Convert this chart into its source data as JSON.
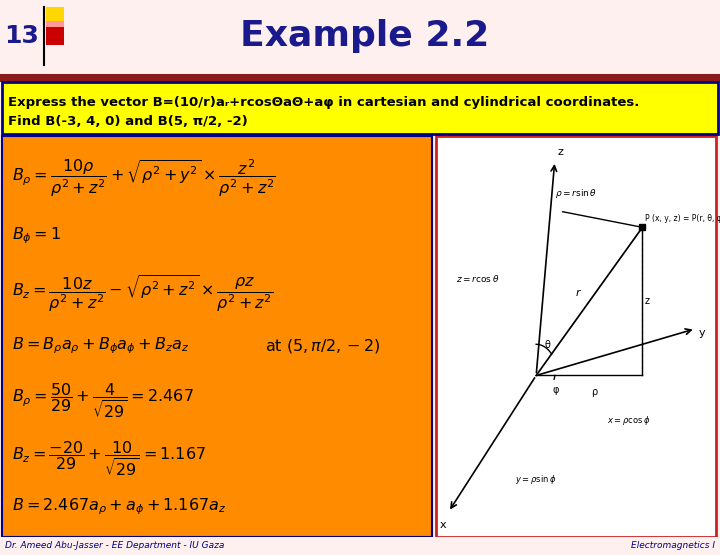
{
  "bg_color": "#FFF0F0",
  "title_number": "13",
  "title_text": "Example 2.2",
  "title_color": "#1a1a8c",
  "accent_bar_color": "#FFD700",
  "header_stripe_color": "#8B1a1a",
  "problem_box_bg": "#FFFF00",
  "problem_box_border": "#00008B",
  "problem_line1": "Express the vector B=(10/r)aᵣ+rcosΘaΘ+aφ in cartesian and cylindrical coordinates.",
  "problem_line2": "Find B(-3, 4, 0) and B(5, π/2, -2)",
  "math_bg": "#FF8C00",
  "math_border": "#00008B",
  "diagram_bg": "#FFFFFF",
  "diagram_border": "#CC2222",
  "footer_left": "Dr. Ameed Abu-Jasser - EE Department - IU Gaza",
  "footer_right": "Electromagnetics I",
  "footer_color": "#00008B",
  "math_color": "#000000",
  "text_color": "#000000"
}
